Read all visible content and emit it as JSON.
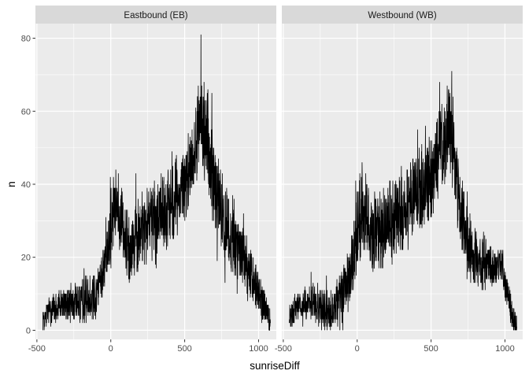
{
  "chart_data": {
    "type": "line",
    "xlabel": "sunriseDiff",
    "ylabel": "n",
    "xlim": [
      -510,
      1120
    ],
    "ylim": [
      -2.5,
      84
    ],
    "xticks": [
      -500,
      0,
      500,
      1000
    ],
    "xtick_labels": [
      "-500",
      "0",
      "500",
      "1000"
    ],
    "yticks": [
      0,
      20,
      40,
      60,
      80
    ],
    "ytick_labels": [
      "0",
      "20",
      "40",
      "60",
      "80"
    ],
    "grid": true,
    "line_color": "#000000",
    "facets": [
      {
        "label": "Eastbound (EB)",
        "x_range": [
          -460,
          1080
        ],
        "trend": [
          [
            -460,
            3
          ],
          [
            -400,
            6
          ],
          [
            -300,
            7
          ],
          [
            -200,
            8
          ],
          [
            -100,
            10
          ],
          [
            -50,
            17
          ],
          [
            0,
            28
          ],
          [
            30,
            34
          ],
          [
            60,
            30
          ],
          [
            100,
            25
          ],
          [
            150,
            23
          ],
          [
            200,
            27
          ],
          [
            300,
            30
          ],
          [
            400,
            35
          ],
          [
            500,
            40
          ],
          [
            560,
            48
          ],
          [
            610,
            60
          ],
          [
            650,
            52
          ],
          [
            700,
            40
          ],
          [
            750,
            32
          ],
          [
            800,
            26
          ],
          [
            900,
            20
          ],
          [
            1000,
            10
          ],
          [
            1050,
            5
          ],
          [
            1080,
            2
          ]
        ],
        "noise": [
          [
            -460,
            3
          ],
          [
            -200,
            5
          ],
          [
            -50,
            6
          ],
          [
            0,
            9
          ],
          [
            200,
            9
          ],
          [
            550,
            9
          ],
          [
            650,
            11
          ],
          [
            800,
            9
          ],
          [
            1080,
            4
          ]
        ],
        "peak": {
          "x": 610,
          "y": 81
        }
      },
      {
        "label": "Westbound (WB)",
        "x_range": [
          -460,
          1080
        ],
        "trend": [
          [
            -460,
            3
          ],
          [
            -400,
            7
          ],
          [
            -300,
            8
          ],
          [
            -250,
            6
          ],
          [
            -200,
            5
          ],
          [
            -100,
            9
          ],
          [
            -50,
            15
          ],
          [
            0,
            25
          ],
          [
            30,
            33
          ],
          [
            60,
            31
          ],
          [
            100,
            27
          ],
          [
            150,
            26
          ],
          [
            200,
            29
          ],
          [
            300,
            32
          ],
          [
            400,
            36
          ],
          [
            500,
            42
          ],
          [
            560,
            50
          ],
          [
            620,
            56
          ],
          [
            660,
            46
          ],
          [
            700,
            32
          ],
          [
            750,
            24
          ],
          [
            800,
            20
          ],
          [
            900,
            17
          ],
          [
            980,
            18
          ],
          [
            1000,
            13
          ],
          [
            1050,
            4
          ],
          [
            1080,
            1
          ]
        ],
        "noise": [
          [
            -460,
            3
          ],
          [
            -200,
            5
          ],
          [
            -50,
            7
          ],
          [
            0,
            10
          ],
          [
            200,
            10
          ],
          [
            550,
            10
          ],
          [
            650,
            10
          ],
          [
            800,
            7
          ],
          [
            1080,
            3
          ]
        ],
        "peak": {
          "x": 640,
          "y": 71
        }
      }
    ]
  }
}
